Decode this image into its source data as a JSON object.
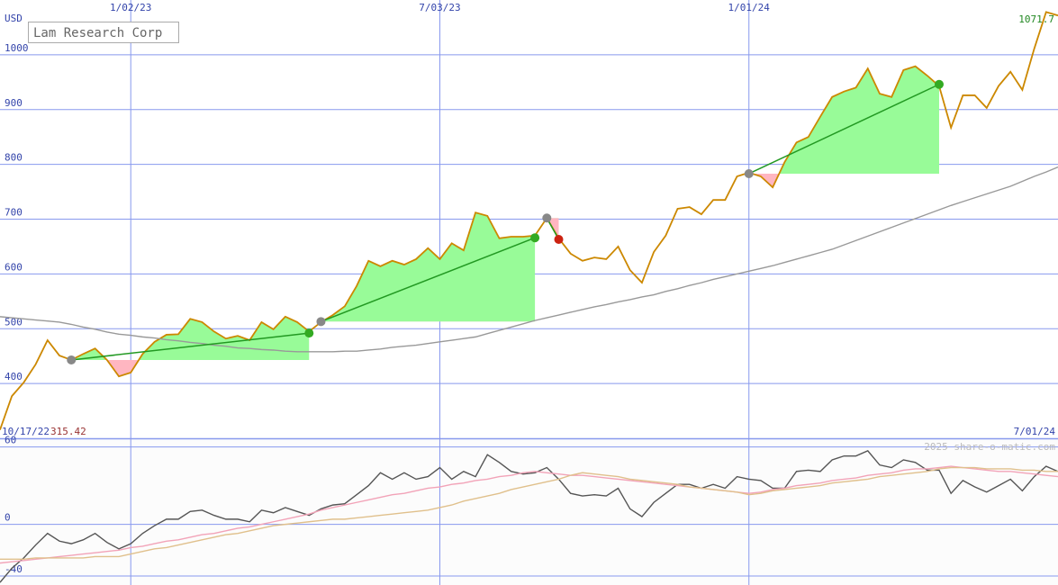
{
  "chart_data": [
    {
      "type": "line",
      "title": "Lam Research Corp",
      "ylabel": "USD",
      "categories": [
        "10/17/22",
        null,
        null,
        null,
        null,
        null,
        null,
        null,
        null,
        null,
        null,
        "1/02/23",
        null,
        null,
        null,
        null,
        null,
        null,
        null,
        null,
        null,
        null,
        null,
        null,
        null,
        null,
        null,
        null,
        null,
        null,
        null,
        null,
        null,
        null,
        null,
        null,
        null,
        "7/03/23",
        null,
        null,
        null,
        null,
        null,
        null,
        null,
        null,
        null,
        null,
        null,
        null,
        null,
        null,
        null,
        null,
        null,
        null,
        null,
        null,
        null,
        null,
        null,
        null,
        null,
        "1/01/24",
        null,
        null,
        null,
        null,
        null,
        null,
        null,
        null,
        null,
        null,
        null,
        null,
        null,
        null,
        null,
        null,
        null,
        null,
        null,
        null,
        null,
        null,
        null,
        null,
        null,
        "7/01/24"
      ],
      "series": [
        {
          "color": "#cc8800",
          "values": [
            315.42,
            377,
            402,
            435,
            479,
            451,
            443,
            454,
            464,
            443,
            413,
            420,
            454,
            476,
            489,
            490,
            518,
            512,
            495,
            482,
            487,
            479,
            512,
            499,
            522,
            512,
            495,
            512,
            525,
            541,
            578,
            624,
            614,
            624,
            617,
            627,
            647,
            627,
            656,
            643,
            712,
            706,
            665,
            668,
            668,
            670,
            702,
            665,
            637,
            624,
            630,
            627,
            650,
            607,
            584,
            640,
            670,
            719,
            722,
            709,
            735,
            735,
            778,
            785,
            778,
            758,
            804,
            840,
            850,
            887,
            923,
            933,
            940,
            975,
            929,
            923,
            972,
            979,
            962,
            943,
            867,
            926,
            926,
            903,
            943,
            969,
            936,
            1011,
            1078,
            1071.7
          ]
        },
        {
          "color": "#999999",
          "values": [
            522,
            520,
            518,
            516,
            514,
            512,
            508,
            503,
            499,
            494,
            490,
            488,
            485,
            483,
            480,
            478,
            475,
            473,
            470,
            468,
            465,
            464,
            462,
            461,
            459,
            458,
            458,
            458,
            458,
            459,
            459,
            461,
            463,
            466,
            468,
            470,
            473,
            476,
            479,
            482,
            485,
            491,
            497,
            503,
            509,
            515,
            520,
            525,
            530,
            535,
            540,
            544,
            549,
            553,
            558,
            562,
            568,
            573,
            579,
            584,
            590,
            595,
            600,
            605,
            610,
            615,
            621,
            627,
            633,
            639,
            645,
            653,
            661,
            669,
            677,
            685,
            693,
            701,
            709,
            717,
            725,
            732,
            739,
            746,
            753,
            760,
            769,
            778,
            786,
            795
          ]
        }
      ],
      "trades": [
        {
          "x": [
            6,
            26
          ],
          "values": [
            443,
            492
          ]
        },
        {
          "x": [
            27,
            45
          ],
          "values": [
            513,
            666
          ]
        },
        {
          "x": [
            46,
            47
          ],
          "values": [
            702,
            663
          ]
        },
        {
          "x": [
            63,
            79
          ],
          "values": [
            783,
            946
          ]
        }
      ],
      "ylim": [
        300,
        1100
      ],
      "yticks": [
        400,
        500,
        600,
        700,
        800,
        900,
        1000
      ],
      "grid": true
    },
    {
      "type": "line",
      "annotation": "2025 share-o-matic.com",
      "series": [
        {
          "color": "#555555",
          "values": [
            -45,
            -34,
            -26,
            -16,
            -7,
            -13,
            -15,
            -12,
            -7,
            -14,
            -19,
            -15,
            -7,
            -1,
            4,
            4,
            10,
            11,
            7,
            4,
            4,
            2,
            11,
            9,
            13,
            10,
            7,
            12,
            15,
            16,
            23,
            30,
            40,
            35,
            40,
            35,
            37,
            44,
            35,
            41,
            37,
            54,
            48,
            41,
            39,
            40,
            44,
            35,
            24,
            22,
            23,
            22,
            28,
            12,
            6,
            17,
            24,
            31,
            31,
            28,
            31,
            28,
            37,
            35,
            34,
            28,
            28,
            41,
            42,
            41,
            50,
            53,
            53,
            57,
            46,
            44,
            50,
            48,
            42,
            42,
            24,
            34,
            29,
            25,
            30,
            35,
            26,
            37,
            45,
            41
          ]
        },
        {
          "color": "#f2a3b8",
          "values": [
            -30,
            -29,
            -28,
            -27,
            -26,
            -25,
            -24,
            -23,
            -22,
            -21,
            -20,
            -18,
            -17,
            -15,
            -13,
            -12,
            -10,
            -8,
            -7,
            -5,
            -3,
            -2,
            0,
            2,
            4,
            6,
            8,
            11,
            13,
            15,
            17,
            19,
            21,
            23,
            24,
            26,
            28,
            29,
            31,
            32,
            34,
            35,
            37,
            38,
            40,
            41,
            40,
            39,
            38,
            38,
            37,
            36,
            35,
            34,
            33,
            32,
            31,
            30,
            29,
            28,
            27,
            26,
            25,
            24,
            25,
            27,
            28,
            30,
            31,
            32,
            34,
            35,
            36,
            38,
            39,
            40,
            42,
            43,
            43,
            44,
            45,
            44,
            43,
            42,
            41,
            41,
            40,
            39,
            38,
            37
          ]
        },
        {
          "color": "#e0c08c",
          "values": [
            -27,
            -27,
            -27,
            -26,
            -26,
            -26,
            -26,
            -26,
            -25,
            -25,
            -25,
            -23,
            -21,
            -19,
            -18,
            -16,
            -14,
            -12,
            -10,
            -8,
            -7,
            -5,
            -3,
            -1,
            0,
            1,
            2,
            3,
            4,
            4,
            5,
            6,
            7,
            8,
            9,
            10,
            11,
            13,
            15,
            18,
            20,
            22,
            24,
            27,
            29,
            31,
            33,
            35,
            38,
            40,
            39,
            38,
            37,
            35,
            34,
            33,
            32,
            31,
            29,
            28,
            27,
            26,
            25,
            23,
            24,
            26,
            27,
            28,
            29,
            30,
            32,
            33,
            34,
            35,
            37,
            38,
            39,
            40,
            41,
            43,
            44,
            44,
            44,
            43,
            43,
            43,
            42,
            42,
            41,
            41
          ]
        }
      ],
      "ylim": [
        -47,
        66
      ],
      "yticks": [
        -40,
        0,
        60
      ],
      "grid": true
    }
  ]
}
